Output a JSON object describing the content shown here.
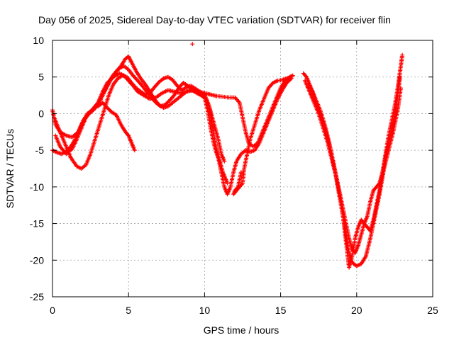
{
  "chart_data": {
    "type": "scatter",
    "title": "Day 056 of 2025, Sidereal Day-to-day VTEC variation (SDTVAR) for receiver flin",
    "xlabel": "GPS time / hours",
    "ylabel": "SDTVAR / TECUs",
    "xlim": [
      0,
      25
    ],
    "ylim": [
      -25,
      10
    ],
    "x_ticks": [
      0,
      5,
      10,
      15,
      20,
      25
    ],
    "y_ticks": [
      -25,
      -20,
      -15,
      -10,
      -5,
      0,
      5,
      10
    ],
    "x_tick_labels": [
      "0",
      "5",
      "10",
      "15",
      "20",
      "25"
    ],
    "y_tick_labels": [
      "-25",
      "-20",
      "-15",
      "-10",
      "-5",
      "0",
      "5",
      "10"
    ],
    "grid": true,
    "marker": "+",
    "color": "#ff0000",
    "series": [
      {
        "points": [
          [
            0.0,
            0.5
          ],
          [
            0.2,
            -1.5
          ],
          [
            0.5,
            -2.5
          ],
          [
            0.9,
            -3.0
          ],
          [
            1.3,
            -3.2
          ],
          [
            1.7,
            -2.5
          ],
          [
            2.0,
            -1.0
          ],
          [
            2.3,
            0.0
          ],
          [
            2.6,
            0.5
          ],
          [
            3.0,
            1.5
          ],
          [
            3.3,
            3.0
          ],
          [
            3.6,
            4.2
          ],
          [
            4.0,
            5.0
          ],
          [
            4.4,
            5.5
          ],
          [
            4.7,
            5.2
          ],
          [
            5.0,
            4.5
          ],
          [
            5.3,
            3.8
          ],
          [
            5.6,
            3.0
          ],
          [
            6.0,
            2.5
          ],
          [
            6.4,
            2.0
          ],
          [
            6.8,
            2.2
          ],
          [
            7.2,
            2.8
          ],
          [
            7.6,
            3.2
          ],
          [
            8.0,
            3.0
          ],
          [
            8.4,
            2.8
          ],
          [
            8.8,
            3.0
          ],
          [
            9.2,
            3.2
          ],
          [
            9.6,
            3.0
          ],
          [
            10.0,
            2.8
          ],
          [
            10.4,
            2.6
          ],
          [
            10.8,
            2.4
          ],
          [
            11.2,
            2.3
          ],
          [
            11.6,
            2.2
          ],
          [
            12.0,
            2.2
          ],
          [
            12.3,
            1.5
          ],
          [
            12.5,
            -0.5
          ],
          [
            12.7,
            -2.5
          ],
          [
            12.9,
            -4.0
          ],
          [
            13.2,
            -4.5
          ],
          [
            13.5,
            -4.0
          ],
          [
            13.8,
            -2.5
          ],
          [
            14.1,
            -1.0
          ],
          [
            14.4,
            0.5
          ],
          [
            14.7,
            2.0
          ],
          [
            15.0,
            3.5
          ],
          [
            15.3,
            4.5
          ],
          [
            15.6,
            5.0
          ],
          [
            15.8,
            5.2
          ]
        ]
      },
      {
        "points": [
          [
            0.1,
            -0.5
          ],
          [
            0.4,
            -2.0
          ],
          [
            0.8,
            -4.0
          ],
          [
            1.2,
            -6.0
          ],
          [
            1.6,
            -7.2
          ],
          [
            1.9,
            -7.5
          ],
          [
            2.2,
            -7.0
          ],
          [
            2.5,
            -5.5
          ],
          [
            2.8,
            -3.5
          ],
          [
            3.1,
            -1.5
          ],
          [
            3.4,
            0.5
          ],
          [
            3.7,
            2.5
          ],
          [
            4.0,
            4.0
          ],
          [
            4.3,
            4.8
          ],
          [
            4.6,
            5.2
          ],
          [
            4.9,
            5.0
          ],
          [
            5.2,
            4.2
          ],
          [
            5.5,
            3.5
          ],
          [
            5.8,
            3.0
          ],
          [
            6.1,
            2.6
          ],
          [
            6.4,
            2.8
          ],
          [
            6.7,
            3.6
          ],
          [
            7.0,
            4.3
          ],
          [
            7.3,
            4.8
          ],
          [
            7.6,
            5.0
          ],
          [
            7.9,
            4.6
          ],
          [
            8.2,
            3.8
          ],
          [
            8.5,
            3.2
          ],
          [
            8.8,
            3.6
          ],
          [
            9.1,
            3.8
          ],
          [
            9.4,
            3.4
          ],
          [
            9.7,
            3.0
          ],
          [
            10.0,
            2.6
          ],
          [
            10.3,
            1.0
          ],
          [
            10.5,
            -1.5
          ],
          [
            10.7,
            -4.0
          ],
          [
            10.9,
            -6.0
          ],
          [
            11.1,
            -8.0
          ],
          [
            11.3,
            -10.0
          ],
          [
            11.5,
            -11.0
          ],
          [
            11.7,
            -10.0
          ],
          [
            11.9,
            -8.0
          ],
          [
            12.1,
            -6.5
          ],
          [
            12.4,
            -5.5
          ],
          [
            12.7,
            -5.0
          ],
          [
            13.0,
            -5.2
          ],
          [
            13.3,
            -5.0
          ],
          [
            13.6,
            -4.0
          ],
          [
            13.9,
            -2.5
          ],
          [
            14.2,
            -1.0
          ],
          [
            14.5,
            0.5
          ],
          [
            14.8,
            2.0
          ],
          [
            15.1,
            3.2
          ],
          [
            15.4,
            4.2
          ],
          [
            15.7,
            4.8
          ]
        ]
      },
      {
        "points": [
          [
            0.0,
            -5.0
          ],
          [
            0.3,
            -5.3
          ],
          [
            0.6,
            -5.5
          ],
          [
            0.9,
            -5.2
          ],
          [
            1.2,
            -4.5
          ],
          [
            1.5,
            -3.5
          ],
          [
            1.8,
            -2.0
          ],
          [
            2.1,
            -0.8
          ],
          [
            2.4,
            0.0
          ],
          [
            2.7,
            0.5
          ],
          [
            3.0,
            1.2
          ],
          [
            3.3,
            2.5
          ],
          [
            3.6,
            3.8
          ],
          [
            3.9,
            5.0
          ],
          [
            4.2,
            5.8
          ],
          [
            4.5,
            6.5
          ],
          [
            4.8,
            7.5
          ],
          [
            5.0,
            7.8
          ],
          [
            5.2,
            7.0
          ],
          [
            5.5,
            5.8
          ],
          [
            5.8,
            4.8
          ],
          [
            6.1,
            4.0
          ],
          [
            6.4,
            3.0
          ],
          [
            6.7,
            2.0
          ],
          [
            7.0,
            1.2
          ],
          [
            7.3,
            0.8
          ],
          [
            7.6,
            1.0
          ],
          [
            7.9,
            1.5
          ],
          [
            8.2,
            2.0
          ],
          [
            8.5,
            2.5
          ],
          [
            8.8,
            3.0
          ],
          [
            9.1,
            3.2
          ],
          [
            9.4,
            3.0
          ],
          [
            9.7,
            2.6
          ],
          [
            10.0,
            2.2
          ],
          [
            10.2,
            0.5
          ],
          [
            10.4,
            -2.0
          ],
          [
            10.6,
            -4.0
          ],
          [
            10.8,
            -5.5
          ],
          [
            11.0,
            -6.5
          ],
          [
            11.2,
            -8.0
          ],
          [
            11.4,
            -9.0
          ],
          [
            11.5,
            -9.5
          ]
        ]
      },
      {
        "points": [
          [
            0.2,
            -3.0
          ],
          [
            0.5,
            -4.5
          ],
          [
            0.9,
            -5.5
          ],
          [
            1.3,
            -4.8
          ],
          [
            1.6,
            -3.5
          ],
          [
            1.9,
            -2.0
          ],
          [
            2.2,
            -0.5
          ],
          [
            2.6,
            0.5
          ],
          [
            3.0,
            1.5
          ],
          [
            3.4,
            3.0
          ],
          [
            3.8,
            4.5
          ],
          [
            4.1,
            5.5
          ],
          [
            4.4,
            6.2
          ],
          [
            4.7,
            6.5
          ],
          [
            5.0,
            6.0
          ],
          [
            5.3,
            5.2
          ],
          [
            5.6,
            4.5
          ],
          [
            5.9,
            3.8
          ],
          [
            6.2,
            3.0
          ],
          [
            6.5,
            2.2
          ],
          [
            6.8,
            1.5
          ],
          [
            7.1,
            1.0
          ],
          [
            7.4,
            1.2
          ],
          [
            7.7,
            1.8
          ],
          [
            8.0,
            2.5
          ],
          [
            8.3,
            3.5
          ],
          [
            8.6,
            4.2
          ],
          [
            8.9,
            3.8
          ],
          [
            9.2,
            3.2
          ],
          [
            9.5,
            2.8
          ],
          [
            9.8,
            2.5
          ],
          [
            10.1,
            2.0
          ],
          [
            10.3,
            1.0
          ],
          [
            10.5,
            -0.5
          ],
          [
            10.7,
            -2.0
          ],
          [
            10.9,
            -3.5
          ],
          [
            11.1,
            -5.5
          ],
          [
            11.3,
            -6.5
          ]
        ]
      },
      {
        "points": [
          [
            3.0,
            1.0
          ],
          [
            3.3,
            1.5
          ],
          [
            3.6,
            0.8
          ],
          [
            3.9,
            0.2
          ],
          [
            4.2,
            -0.2
          ],
          [
            4.5,
            -1.5
          ],
          [
            4.8,
            -2.5
          ],
          [
            5.0,
            -3.0
          ],
          [
            5.2,
            -4.0
          ],
          [
            5.4,
            -5.0
          ]
        ]
      },
      {
        "points": [
          [
            9.2,
            9.5
          ]
        ]
      },
      {
        "points": [
          [
            12.4,
            -8.0
          ],
          [
            12.2,
            -10.0
          ],
          [
            12.0,
            -10.5
          ],
          [
            11.9,
            -11.0
          ],
          [
            12.5,
            -9.5
          ],
          [
            12.6,
            -7.5
          ],
          [
            12.8,
            -5.5
          ],
          [
            13.0,
            -3.5
          ],
          [
            13.3,
            -1.5
          ],
          [
            13.6,
            0.5
          ],
          [
            13.9,
            2.0
          ],
          [
            14.2,
            3.5
          ],
          [
            14.5,
            4.2
          ],
          [
            14.8,
            4.5
          ],
          [
            15.1,
            4.6
          ],
          [
            15.4,
            4.8
          ],
          [
            15.7,
            5.0
          ]
        ]
      },
      {
        "points": [
          [
            16.5,
            5.5
          ],
          [
            16.7,
            5.0
          ],
          [
            16.9,
            4.0
          ],
          [
            17.1,
            3.0
          ],
          [
            17.3,
            1.5
          ],
          [
            17.5,
            0.5
          ],
          [
            17.7,
            -0.5
          ],
          [
            17.9,
            -2.0
          ],
          [
            18.1,
            -3.5
          ],
          [
            18.3,
            -5.0
          ],
          [
            18.5,
            -7.0
          ],
          [
            18.7,
            -9.0
          ],
          [
            18.9,
            -11.0
          ],
          [
            19.1,
            -13.0
          ],
          [
            19.3,
            -15.0
          ],
          [
            19.5,
            -17.0
          ],
          [
            19.7,
            -18.5
          ],
          [
            19.9,
            -19.0
          ],
          [
            20.1,
            -18.0
          ],
          [
            20.3,
            -16.5
          ],
          [
            20.5,
            -15.0
          ],
          [
            20.7,
            -14.0
          ],
          [
            20.9,
            -12.0
          ],
          [
            21.1,
            -10.5
          ],
          [
            21.3,
            -10.0
          ],
          [
            21.5,
            -9.5
          ],
          [
            21.7,
            -8.0
          ],
          [
            21.9,
            -6.0
          ],
          [
            22.1,
            -4.0
          ],
          [
            22.3,
            -2.0
          ],
          [
            22.5,
            0.0
          ],
          [
            22.7,
            2.5
          ],
          [
            22.85,
            5.0
          ]
        ]
      },
      {
        "points": [
          [
            16.6,
            4.5
          ],
          [
            16.9,
            3.0
          ],
          [
            17.2,
            1.5
          ],
          [
            17.5,
            0.0
          ],
          [
            17.8,
            -2.0
          ],
          [
            18.1,
            -4.0
          ],
          [
            18.4,
            -6.5
          ],
          [
            18.7,
            -9.0
          ],
          [
            19.0,
            -12.0
          ],
          [
            19.2,
            -15.0
          ],
          [
            19.4,
            -18.0
          ],
          [
            19.6,
            -20.0
          ],
          [
            19.8,
            -20.5
          ],
          [
            20.0,
            -20.8
          ],
          [
            20.3,
            -20.5
          ],
          [
            20.6,
            -19.5
          ],
          [
            20.9,
            -17.0
          ],
          [
            21.2,
            -14.0
          ],
          [
            21.5,
            -11.0
          ],
          [
            21.8,
            -7.5
          ],
          [
            22.1,
            -5.0
          ],
          [
            22.4,
            -2.5
          ],
          [
            22.7,
            0.5
          ],
          [
            22.9,
            3.5
          ]
        ]
      },
      {
        "points": [
          [
            17.0,
            3.5
          ],
          [
            17.3,
            2.0
          ],
          [
            17.6,
            0.5
          ],
          [
            17.9,
            -1.5
          ],
          [
            18.2,
            -4.0
          ],
          [
            18.5,
            -7.0
          ],
          [
            18.8,
            -10.5
          ],
          [
            19.1,
            -14.0
          ],
          [
            19.3,
            -17.5
          ],
          [
            19.5,
            -21.0
          ],
          [
            19.7,
            -19.5
          ],
          [
            19.9,
            -17.0
          ],
          [
            20.1,
            -15.5
          ],
          [
            20.3,
            -14.5
          ],
          [
            20.5,
            -15.0
          ],
          [
            20.7,
            -15.5
          ],
          [
            20.9,
            -16.0
          ],
          [
            21.1,
            -14.5
          ],
          [
            21.3,
            -12.5
          ],
          [
            21.5,
            -10.5
          ],
          [
            21.7,
            -8.0
          ],
          [
            21.9,
            -5.5
          ],
          [
            22.1,
            -3.0
          ],
          [
            22.3,
            -1.0
          ],
          [
            22.5,
            1.0
          ],
          [
            22.7,
            3.5
          ],
          [
            22.9,
            6.5
          ],
          [
            23.0,
            8.0
          ]
        ]
      }
    ]
  }
}
